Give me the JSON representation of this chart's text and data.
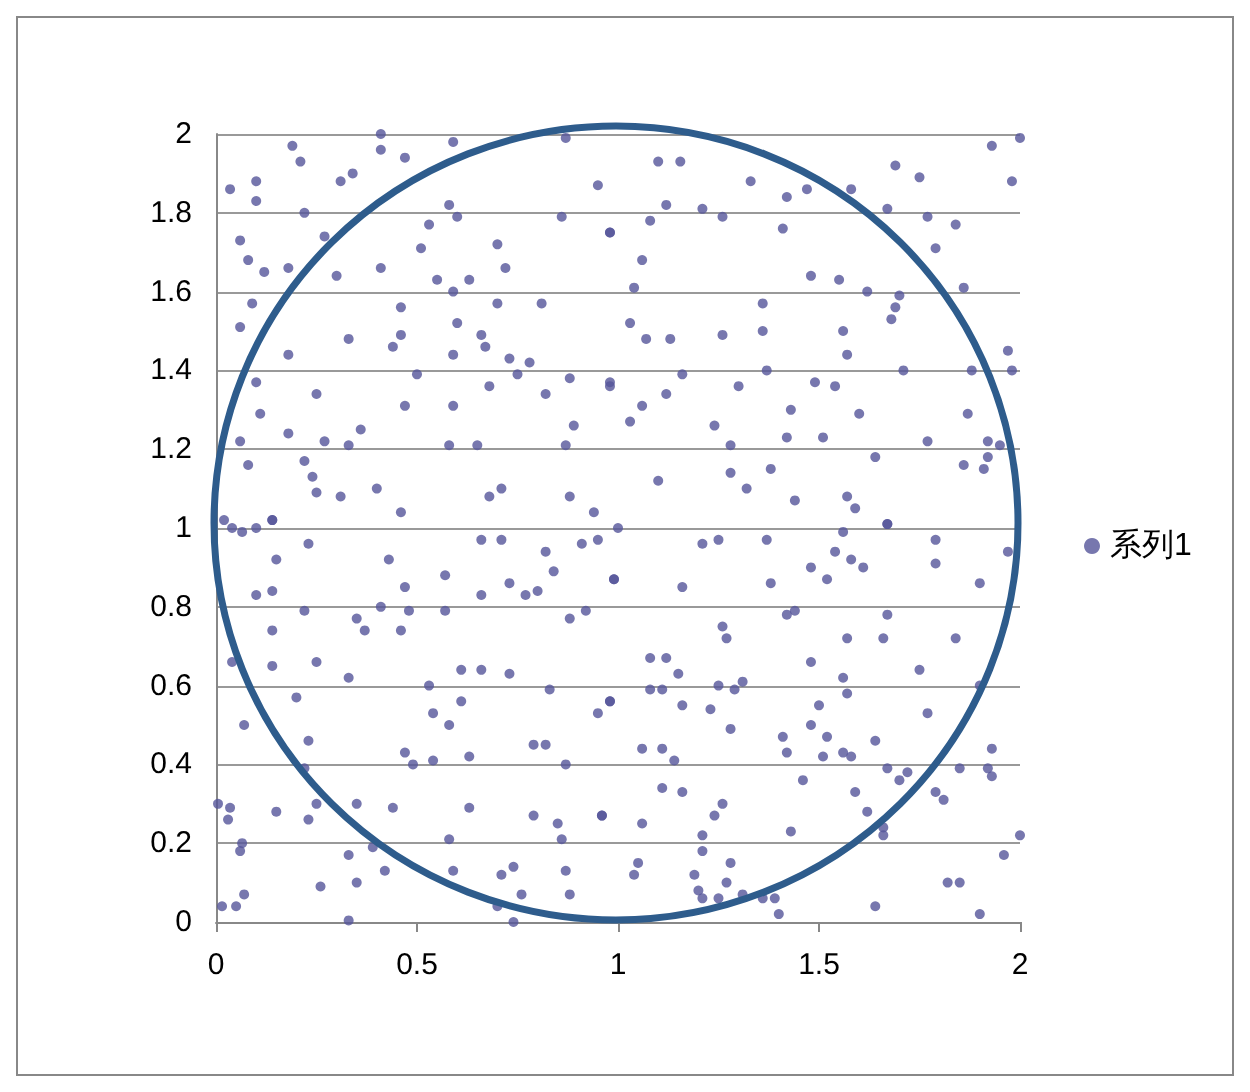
{
  "chart_data": {
    "type": "scatter",
    "xlim": [
      0,
      2
    ],
    "ylim": [
      0,
      2
    ],
    "xticks": [
      0,
      0.5,
      1,
      1.5,
      2
    ],
    "yticks": [
      0,
      0.2,
      0.4,
      0.6,
      0.8,
      1,
      1.2,
      1.4,
      1.6,
      1.8,
      2
    ],
    "grid": "y",
    "legend": "right",
    "marker": "circle",
    "series": [
      {
        "name": "系列1",
        "color": "#55559a",
        "x": [
          0.035,
          0.1,
          0.1,
          0.19,
          0.21,
          0.22,
          0.31,
          0.34,
          0.41,
          0.41,
          0.47,
          0.59,
          0.58,
          0.6,
          0.53,
          0.51,
          0.7,
          0.72,
          0.86,
          0.87,
          0.95,
          0.98,
          0.06,
          0.08,
          0.12,
          0.18,
          0.27,
          0.3,
          0.41,
          0.55,
          0.59,
          0.63,
          0.7,
          0.81,
          0.46,
          0.09,
          0.06,
          0.18,
          0.33,
          0.44,
          0.46,
          0.6,
          0.59,
          0.66,
          0.67,
          0.73,
          0.78,
          0.75,
          0.88,
          0.98,
          0.82,
          0.68,
          0.5,
          0.59,
          0.47,
          0.25,
          0.1,
          0.11,
          0.06,
          0.18,
          0.27,
          0.33,
          0.36,
          0.58,
          0.65,
          0.87,
          0.89,
          0.08,
          0.22,
          0.24,
          0.25,
          0.31,
          0.4,
          0.46,
          0.14,
          0.68,
          0.71,
          0.88,
          0.94,
          1.1,
          1.155,
          1.12,
          1.21,
          1.26,
          1.08,
          0.98,
          1.33,
          1.42,
          1.47,
          1.58,
          1.67,
          1.69,
          1.75,
          1.77,
          1.84,
          1.93,
          2.0,
          1.98,
          1.79,
          1.41,
          1.06,
          1.04,
          1.48,
          1.55,
          1.62,
          1.7,
          1.69,
          1.86,
          1.36,
          1.03,
          1.07,
          1.13,
          1.26,
          1.36,
          1.56,
          1.57,
          1.68,
          1.97,
          1.98,
          1.88,
          1.71,
          1.37,
          1.3,
          1.16,
          0.98,
          1.06,
          1.12,
          1.03,
          1.24,
          1.43,
          1.49,
          1.54,
          1.6,
          1.87,
          1.28,
          1.42,
          1.51,
          1.77,
          1.92,
          1.95,
          1.64,
          1.86,
          1.91,
          1.92,
          1.1,
          1.28,
          1.38,
          1.32,
          1.44,
          1.57,
          1.59,
          1.67,
          0.14,
          0.02,
          0.04,
          0.065,
          0.1,
          0.15,
          0.23,
          0.43,
          0.47,
          0.57,
          0.66,
          0.71,
          0.73,
          0.82,
          0.84,
          0.91,
          0.95,
          0.99,
          0.1,
          0.14,
          0.22,
          0.35,
          0.37,
          0.41,
          0.46,
          0.48,
          0.57,
          0.66,
          0.77,
          0.8,
          0.88,
          0.92,
          0.14,
          0.04,
          0.14,
          0.25,
          0.33,
          0.53,
          0.61,
          0.66,
          0.73,
          0.83,
          0.2,
          0.07,
          0.54,
          0.58,
          0.61,
          0.95,
          0.98,
          0.23,
          0.47,
          0.49,
          0.54,
          0.63,
          0.79,
          0.82,
          0.87,
          0.22,
          0.005,
          0.035,
          0.03,
          0.15,
          0.23,
          0.25,
          0.35,
          0.44,
          0.63,
          0.79,
          0.85,
          0.86,
          0.96,
          0.065,
          0.06,
          0.33,
          0.35,
          0.39,
          0.42,
          0.26,
          0.58,
          0.59,
          0.71,
          0.74,
          0.87,
          0.76,
          0.88,
          0.07,
          0.015,
          0.05,
          0.33,
          0.7,
          0.74,
          1.0,
          1.21,
          1.25,
          1.37,
          1.56,
          1.67,
          1.79,
          1.97,
          0.99,
          1.16,
          1.38,
          1.48,
          1.52,
          1.54,
          1.58,
          1.61,
          1.79,
          1.9,
          1.42,
          1.44,
          1.67,
          1.66,
          1.57,
          1.84,
          1.26,
          1.27,
          1.08,
          1.12,
          1.15,
          1.08,
          1.11,
          1.16,
          1.23,
          1.25,
          1.29,
          1.31,
          1.48,
          1.56,
          1.57,
          1.75,
          1.77,
          1.9,
          0.98,
          1.5,
          1.48,
          1.28,
          1.41,
          1.42,
          1.06,
          1.11,
          1.14,
          1.52,
          1.51,
          1.56,
          1.58,
          1.64,
          1.67,
          1.7,
          1.72,
          1.85,
          1.93,
          1.92,
          1.93,
          1.79,
          1.81,
          1.11,
          1.16,
          1.46,
          1.59,
          1.62,
          0.96,
          1.06,
          1.24,
          1.26,
          1.43,
          1.66,
          1.66,
          2.0,
          1.96,
          1.21,
          1.21,
          1.05,
          1.04,
          1.19,
          1.28,
          1.27,
          1.2,
          1.21,
          1.25,
          1.31,
          1.36,
          1.39,
          1.4,
          1.64,
          1.82,
          1.85,
          1.9
        ],
        "values": [
          1.86,
          1.88,
          1.83,
          1.97,
          1.93,
          1.8,
          1.88,
          1.9,
          2.0,
          1.96,
          1.94,
          1.98,
          1.82,
          1.79,
          1.77,
          1.71,
          1.72,
          1.66,
          1.79,
          1.99,
          1.87,
          1.75,
          1.73,
          1.68,
          1.65,
          1.66,
          1.74,
          1.64,
          1.66,
          1.63,
          1.6,
          1.63,
          1.57,
          1.57,
          1.56,
          1.57,
          1.51,
          1.44,
          1.48,
          1.46,
          1.49,
          1.52,
          1.44,
          1.49,
          1.46,
          1.43,
          1.42,
          1.39,
          1.38,
          1.37,
          1.34,
          1.36,
          1.39,
          1.31,
          1.31,
          1.34,
          1.37,
          1.29,
          1.22,
          1.24,
          1.22,
          1.21,
          1.25,
          1.21,
          1.21,
          1.21,
          1.26,
          1.16,
          1.17,
          1.13,
          1.09,
          1.08,
          1.1,
          1.04,
          1.02,
          1.08,
          1.1,
          1.08,
          1.04,
          1.93,
          1.93,
          1.82,
          1.81,
          1.79,
          1.78,
          1.75,
          1.88,
          1.84,
          1.86,
          1.86,
          1.81,
          1.92,
          1.89,
          1.79,
          1.77,
          1.97,
          1.99,
          1.88,
          1.71,
          1.76,
          1.68,
          1.61,
          1.64,
          1.63,
          1.6,
          1.59,
          1.56,
          1.61,
          1.57,
          1.52,
          1.48,
          1.48,
          1.49,
          1.5,
          1.5,
          1.44,
          1.53,
          1.45,
          1.4,
          1.4,
          1.4,
          1.4,
          1.36,
          1.39,
          1.36,
          1.31,
          1.34,
          1.27,
          1.26,
          1.3,
          1.37,
          1.36,
          1.29,
          1.29,
          1.21,
          1.23,
          1.23,
          1.22,
          1.22,
          1.21,
          1.18,
          1.16,
          1.15,
          1.18,
          1.12,
          1.14,
          1.15,
          1.1,
          1.07,
          1.08,
          1.05,
          1.01,
          1.02,
          1.02,
          1.0,
          0.99,
          1.0,
          0.92,
          0.96,
          0.92,
          0.85,
          0.88,
          0.97,
          0.97,
          0.86,
          0.94,
          0.89,
          0.96,
          0.97,
          0.87,
          0.83,
          0.84,
          0.79,
          0.77,
          0.74,
          0.8,
          0.74,
          0.79,
          0.79,
          0.83,
          0.83,
          0.84,
          0.77,
          0.79,
          0.74,
          0.66,
          0.65,
          0.66,
          0.62,
          0.6,
          0.64,
          0.64,
          0.63,
          0.59,
          0.57,
          0.5,
          0.53,
          0.5,
          0.56,
          0.53,
          0.56,
          0.46,
          0.43,
          0.4,
          0.41,
          0.42,
          0.45,
          0.45,
          0.4,
          0.39,
          0.3,
          0.29,
          0.26,
          0.28,
          0.26,
          0.3,
          0.3,
          0.29,
          0.29,
          0.27,
          0.25,
          0.21,
          0.27,
          0.2,
          0.18,
          0.17,
          0.1,
          0.19,
          0.13,
          0.09,
          0.21,
          0.13,
          0.12,
          0.14,
          0.13,
          0.07,
          0.07,
          0.07,
          0.04,
          0.04,
          0.004,
          0.04,
          0.0,
          1.0,
          0.96,
          0.97,
          0.97,
          0.99,
          1.01,
          0.97,
          0.94,
          0.87,
          0.85,
          0.86,
          0.9,
          0.87,
          0.94,
          0.92,
          0.9,
          0.91,
          0.86,
          0.78,
          0.79,
          0.78,
          0.72,
          0.72,
          0.72,
          0.75,
          0.72,
          0.67,
          0.67,
          0.63,
          0.59,
          0.59,
          0.55,
          0.54,
          0.6,
          0.59,
          0.61,
          0.66,
          0.62,
          0.58,
          0.64,
          0.53,
          0.6,
          0.56,
          0.55,
          0.5,
          0.49,
          0.47,
          0.43,
          0.44,
          0.44,
          0.41,
          0.47,
          0.42,
          0.43,
          0.42,
          0.46,
          0.39,
          0.36,
          0.38,
          0.39,
          0.44,
          0.39,
          0.37,
          0.33,
          0.31,
          0.34,
          0.33,
          0.36,
          0.33,
          0.28,
          0.27,
          0.25,
          0.27,
          0.3,
          0.23,
          0.24,
          0.22,
          0.22,
          0.17,
          0.22,
          0.18,
          0.15,
          0.12,
          0.12,
          0.15,
          0.1,
          0.08,
          0.06,
          0.06,
          0.07,
          0.06,
          0.06,
          0.02,
          0.04,
          0.1,
          0.1,
          0.02
        ]
      }
    ]
  }
}
